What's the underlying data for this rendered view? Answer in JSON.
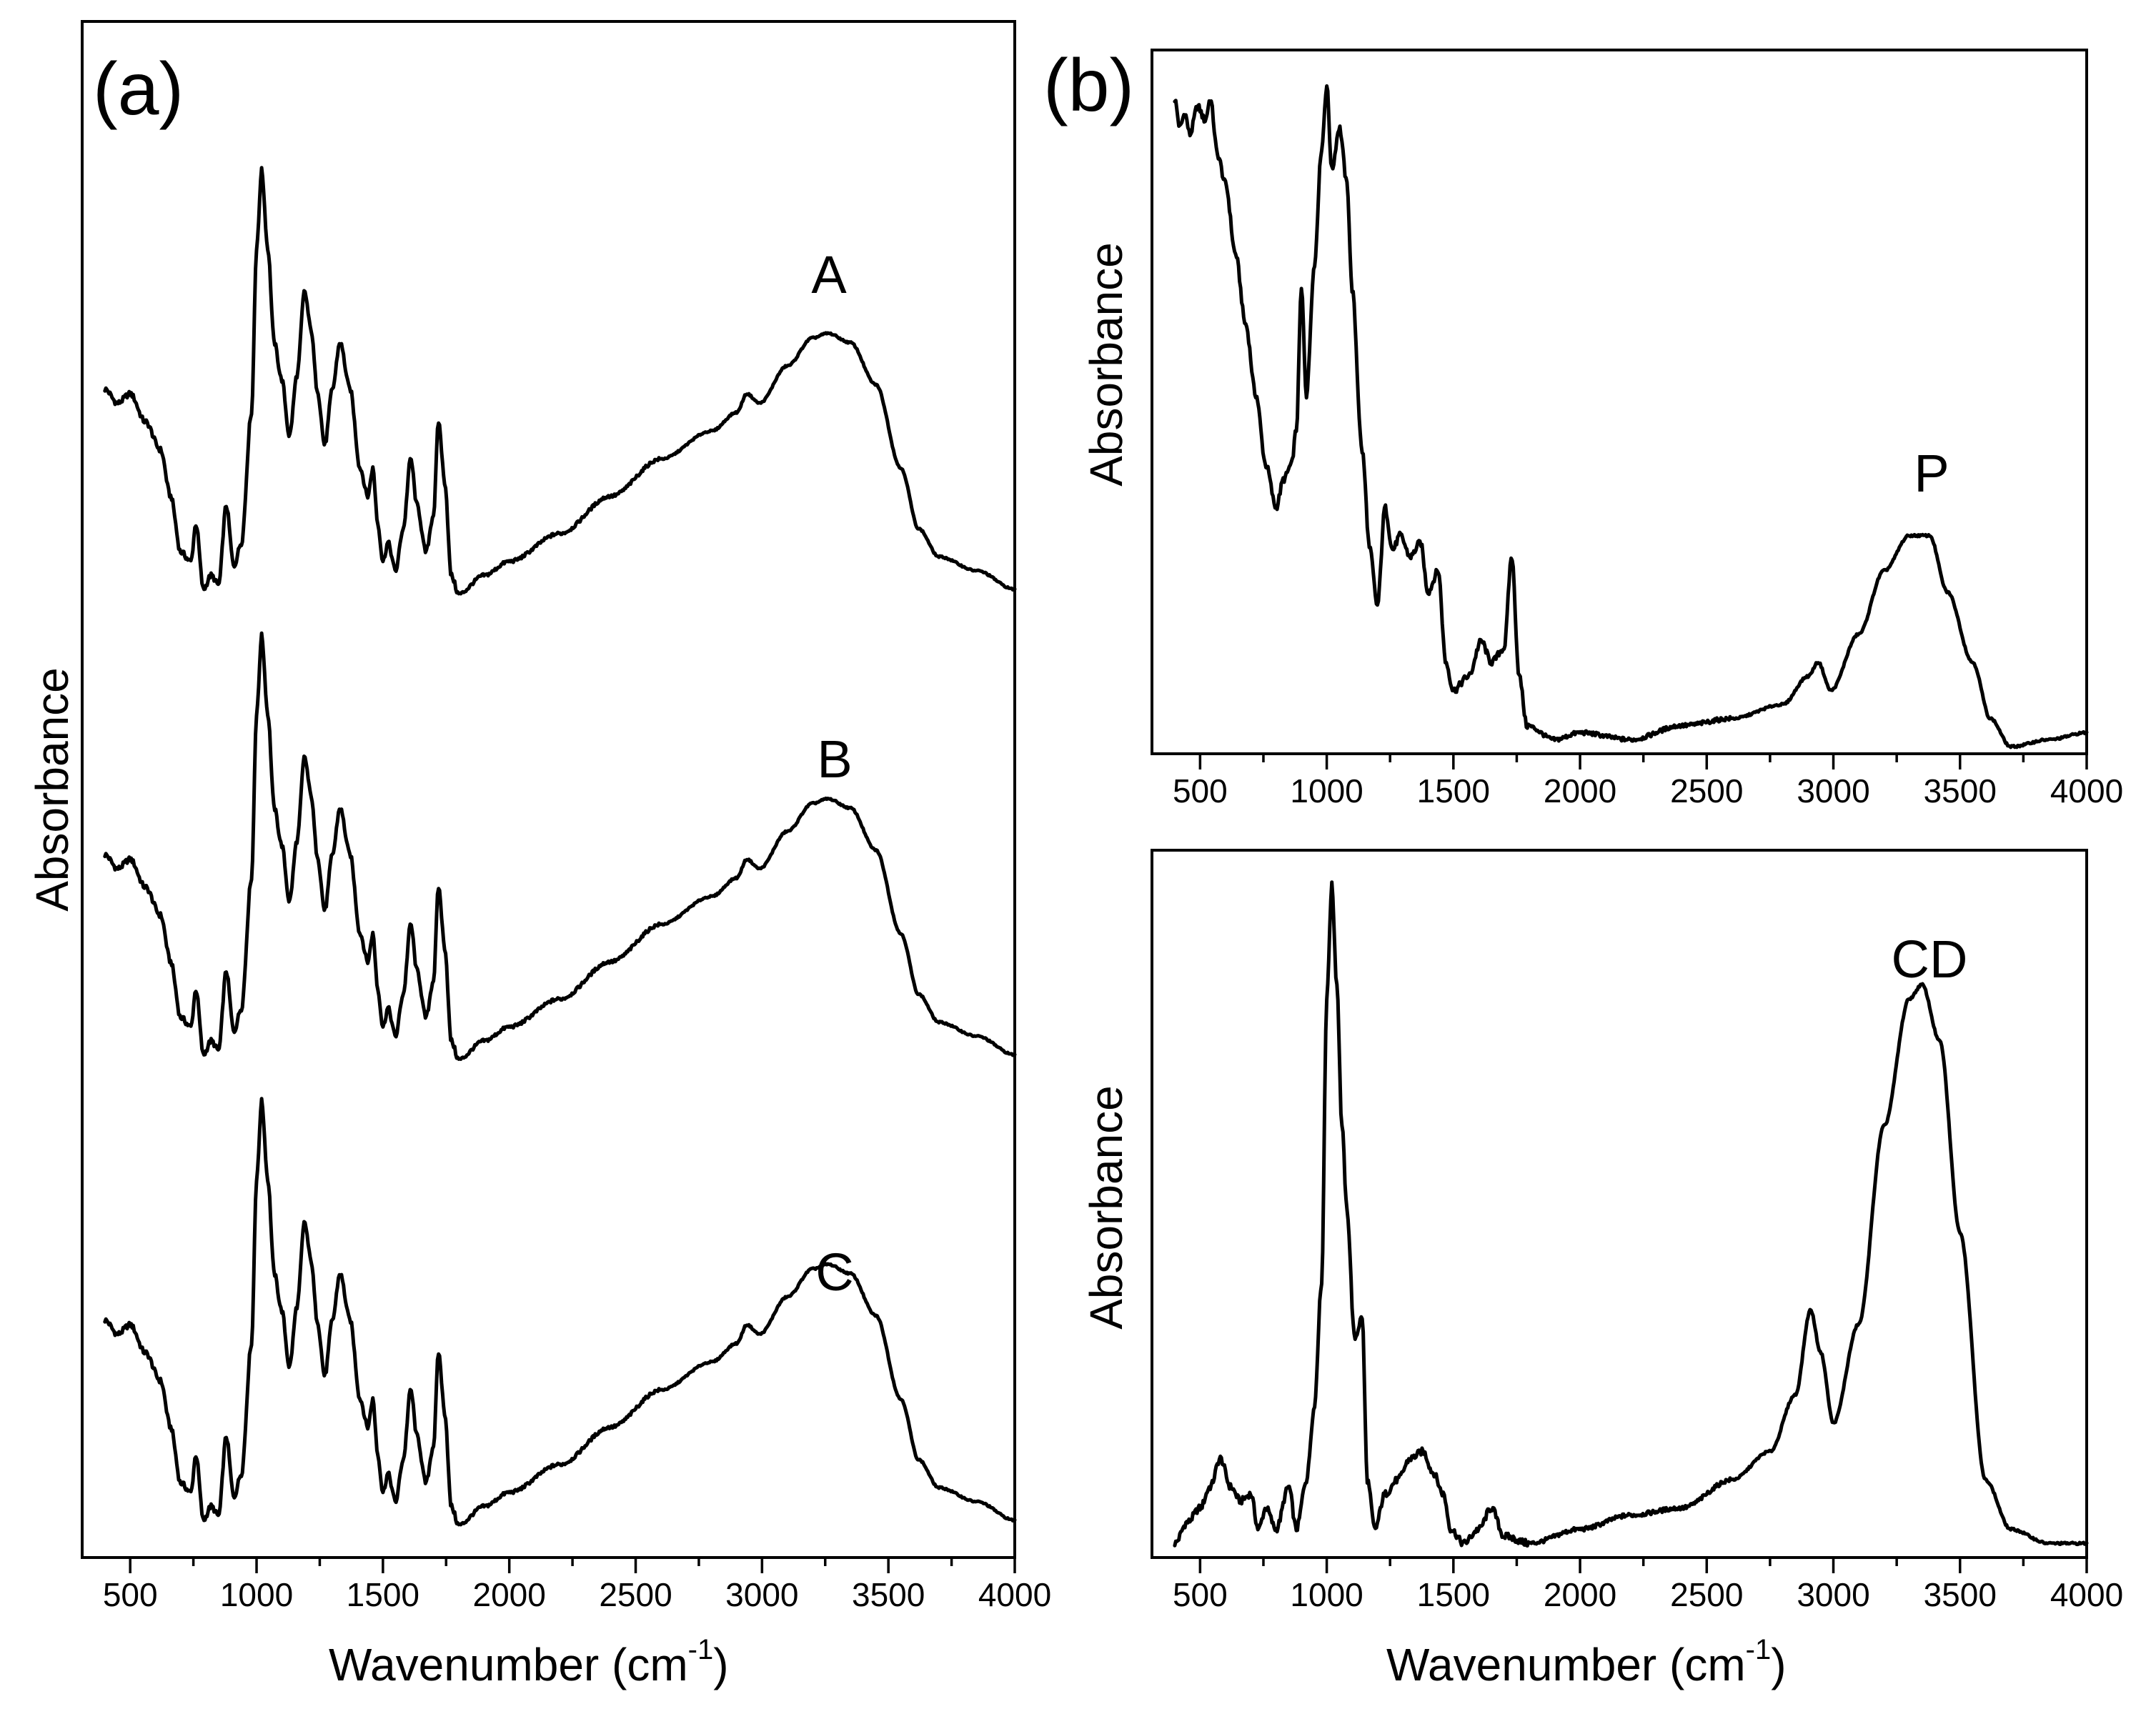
{
  "figure": {
    "panel_a_label": "(a)",
    "panel_b_label": "(b)"
  },
  "chart_data": [
    {
      "type": "line",
      "panel": "a",
      "xlabel_main": "Wavenumber (cm",
      "xlabel_sup": "-1",
      "xlabel_tail": ")",
      "ylabel": "Absorbance",
      "xlim": [
        310,
        4000
      ],
      "ylim": [
        0,
        3.3
      ],
      "xticks": [
        500,
        1000,
        1500,
        2000,
        2500,
        3000,
        3500,
        4000
      ],
      "y_ticks_shown": false,
      "series": [
        {
          "name": "A",
          "offset": 2.0
        },
        {
          "name": "B",
          "offset": 1.0
        },
        {
          "name": "C",
          "offset": 0.0
        }
      ],
      "spectrum_a": [
        [
          400,
          0.45
        ],
        [
          450,
          0.42
        ],
        [
          500,
          0.44
        ],
        [
          560,
          0.38
        ],
        [
          620,
          0.32
        ],
        [
          660,
          0.22
        ],
        [
          700,
          0.1
        ],
        [
          740,
          0.08
        ],
        [
          760,
          0.16
        ],
        [
          790,
          0.02
        ],
        [
          820,
          0.05
        ],
        [
          850,
          0.03
        ],
        [
          880,
          0.2
        ],
        [
          910,
          0.07
        ],
        [
          940,
          0.12
        ],
        [
          980,
          0.4
        ],
        [
          1000,
          0.75
        ],
        [
          1020,
          0.92
        ],
        [
          1045,
          0.75
        ],
        [
          1070,
          0.55
        ],
        [
          1100,
          0.47
        ],
        [
          1130,
          0.35
        ],
        [
          1160,
          0.48
        ],
        [
          1190,
          0.66
        ],
        [
          1215,
          0.58
        ],
        [
          1240,
          0.45
        ],
        [
          1270,
          0.33
        ],
        [
          1300,
          0.45
        ],
        [
          1330,
          0.55
        ],
        [
          1370,
          0.45
        ],
        [
          1410,
          0.28
        ],
        [
          1440,
          0.22
        ],
        [
          1460,
          0.28
        ],
        [
          1480,
          0.16
        ],
        [
          1500,
          0.08
        ],
        [
          1520,
          0.12
        ],
        [
          1550,
          0.06
        ],
        [
          1580,
          0.15
        ],
        [
          1610,
          0.3
        ],
        [
          1635,
          0.2
        ],
        [
          1670,
          0.1
        ],
        [
          1700,
          0.18
        ],
        [
          1720,
          0.38
        ],
        [
          1745,
          0.25
        ],
        [
          1770,
          0.05
        ],
        [
          1800,
          0.01
        ],
        [
          1900,
          0.05
        ],
        [
          2000,
          0.08
        ],
        [
          2200,
          0.14
        ],
        [
          2400,
          0.22
        ],
        [
          2600,
          0.3
        ],
        [
          2800,
          0.36
        ],
        [
          2900,
          0.4
        ],
        [
          2940,
          0.44
        ],
        [
          2990,
          0.42
        ],
        [
          3100,
          0.5
        ],
        [
          3200,
          0.56
        ],
        [
          3260,
          0.57
        ],
        [
          3350,
          0.55
        ],
        [
          3450,
          0.46
        ],
        [
          3550,
          0.28
        ],
        [
          3620,
          0.15
        ],
        [
          3700,
          0.09
        ],
        [
          3850,
          0.06
        ],
        [
          4000,
          0.02
        ]
      ],
      "series_labels": [
        "A",
        "B",
        "C"
      ]
    },
    {
      "type": "line",
      "panel": "b-top",
      "ylabel": "Absorbance",
      "xlim": [
        310,
        4000
      ],
      "ylim": [
        0,
        1.0
      ],
      "xticks": [
        500,
        1000,
        1500,
        2000,
        2500,
        3000,
        3500,
        4000
      ],
      "y_ticks_shown": false,
      "series_label": "P",
      "spectrum": [
        [
          400,
          0.92
        ],
        [
          420,
          0.88
        ],
        [
          440,
          0.9
        ],
        [
          460,
          0.87
        ],
        [
          490,
          0.91
        ],
        [
          520,
          0.89
        ],
        [
          540,
          0.92
        ],
        [
          570,
          0.84
        ],
        [
          600,
          0.8
        ],
        [
          640,
          0.7
        ],
        [
          680,
          0.6
        ],
        [
          720,
          0.5
        ],
        [
          760,
          0.4
        ],
        [
          800,
          0.34
        ],
        [
          830,
          0.38
        ],
        [
          860,
          0.4
        ],
        [
          880,
          0.45
        ],
        [
          900,
          0.65
        ],
        [
          920,
          0.5
        ],
        [
          950,
          0.68
        ],
        [
          980,
          0.85
        ],
        [
          1000,
          0.94
        ],
        [
          1020,
          0.82
        ],
        [
          1050,
          0.88
        ],
        [
          1080,
          0.8
        ],
        [
          1100,
          0.65
        ],
        [
          1140,
          0.42
        ],
        [
          1170,
          0.28
        ],
        [
          1200,
          0.2
        ],
        [
          1230,
          0.34
        ],
        [
          1260,
          0.28
        ],
        [
          1290,
          0.3
        ],
        [
          1330,
          0.27
        ],
        [
          1370,
          0.29
        ],
        [
          1400,
          0.22
        ],
        [
          1440,
          0.25
        ],
        [
          1470,
          0.12
        ],
        [
          1500,
          0.08
        ],
        [
          1560,
          0.1
        ],
        [
          1610,
          0.15
        ],
        [
          1650,
          0.12
        ],
        [
          1700,
          0.14
        ],
        [
          1730,
          0.27
        ],
        [
          1760,
          0.1
        ],
        [
          1790,
          0.03
        ],
        [
          1900,
          0.01
        ],
        [
          2000,
          0.02
        ],
        [
          2200,
          0.01
        ],
        [
          2400,
          0.03
        ],
        [
          2600,
          0.04
        ],
        [
          2800,
          0.06
        ],
        [
          2900,
          0.1
        ],
        [
          2940,
          0.12
        ],
        [
          2990,
          0.08
        ],
        [
          3100,
          0.16
        ],
        [
          3200,
          0.25
        ],
        [
          3300,
          0.3
        ],
        [
          3380,
          0.3
        ],
        [
          3450,
          0.22
        ],
        [
          3550,
          0.12
        ],
        [
          3620,
          0.04
        ],
        [
          3700,
          0.0
        ],
        [
          3850,
          0.01
        ],
        [
          4000,
          0.02
        ]
      ]
    },
    {
      "type": "line",
      "panel": "b-bottom",
      "ylabel": "Absorbance",
      "xlim": [
        310,
        4000
      ],
      "ylim": [
        0,
        1.0
      ],
      "xticks": [
        500,
        1000,
        1500,
        2000,
        2500,
        3000,
        3500,
        4000
      ],
      "y_ticks_shown": false,
      "series_label": "CD",
      "spectrum": [
        [
          400,
          0.01
        ],
        [
          450,
          0.04
        ],
        [
          500,
          0.06
        ],
        [
          540,
          0.09
        ],
        [
          580,
          0.13
        ],
        [
          620,
          0.09
        ],
        [
          660,
          0.07
        ],
        [
          700,
          0.08
        ],
        [
          730,
          0.03
        ],
        [
          760,
          0.06
        ],
        [
          800,
          0.03
        ],
        [
          850,
          0.09
        ],
        [
          880,
          0.03
        ],
        [
          920,
          0.1
        ],
        [
          950,
          0.2
        ],
        [
          980,
          0.38
        ],
        [
          1000,
          0.78
        ],
        [
          1020,
          0.94
        ],
        [
          1040,
          0.8
        ],
        [
          1060,
          0.6
        ],
        [
          1080,
          0.48
        ],
        [
          1110,
          0.3
        ],
        [
          1140,
          0.33
        ],
        [
          1160,
          0.1
        ],
        [
          1190,
          0.03
        ],
        [
          1230,
          0.08
        ],
        [
          1280,
          0.1
        ],
        [
          1330,
          0.13
        ],
        [
          1380,
          0.14
        ],
        [
          1420,
          0.11
        ],
        [
          1460,
          0.08
        ],
        [
          1490,
          0.03
        ],
        [
          1540,
          0.01
        ],
        [
          1600,
          0.03
        ],
        [
          1650,
          0.06
        ],
        [
          1700,
          0.02
        ],
        [
          1800,
          0.01
        ],
        [
          2000,
          0.03
        ],
        [
          2200,
          0.05
        ],
        [
          2400,
          0.06
        ],
        [
          2600,
          0.1
        ],
        [
          2750,
          0.14
        ],
        [
          2850,
          0.22
        ],
        [
          2910,
          0.34
        ],
        [
          2950,
          0.28
        ],
        [
          3000,
          0.18
        ],
        [
          3100,
          0.32
        ],
        [
          3200,
          0.6
        ],
        [
          3300,
          0.78
        ],
        [
          3350,
          0.8
        ],
        [
          3420,
          0.72
        ],
        [
          3500,
          0.45
        ],
        [
          3600,
          0.1
        ],
        [
          3700,
          0.03
        ],
        [
          3850,
          0.01
        ],
        [
          4000,
          0.01
        ]
      ]
    }
  ]
}
